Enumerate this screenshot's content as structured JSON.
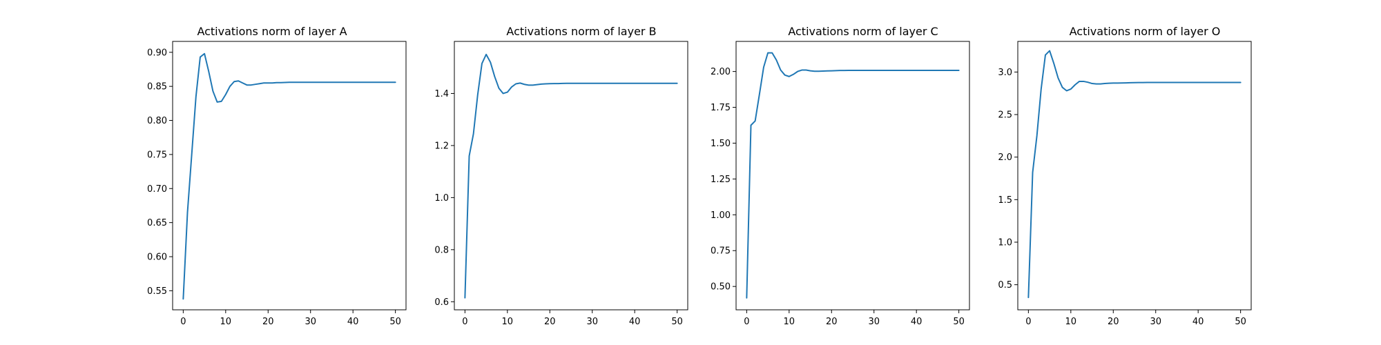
{
  "colors": {
    "series": "#1f77b4",
    "axis": "#000000",
    "background": "#ffffff"
  },
  "chart_data": [
    {
      "type": "line",
      "title": "Activations norm of layer A",
      "xlabel": "",
      "ylabel": "",
      "xlim": [
        -2.5,
        52.5
      ],
      "ylim": [
        0.522,
        0.916
      ],
      "xticks": [
        0,
        10,
        20,
        30,
        40,
        50
      ],
      "yticks": [
        0.55,
        0.6,
        0.65,
        0.7,
        0.75,
        0.8,
        0.85,
        0.9
      ],
      "ytick_labels": [
        "0.55",
        "0.60",
        "0.65",
        "0.70",
        "0.75",
        "0.80",
        "0.85",
        "0.90"
      ],
      "grid": false,
      "series": [
        {
          "x": [
            0,
            1,
            2,
            3,
            4,
            5,
            6,
            7,
            8,
            9,
            10,
            11,
            12,
            13,
            14,
            15,
            16,
            17,
            18,
            19,
            20,
            21,
            22,
            23,
            24,
            25,
            26,
            27,
            28,
            29,
            30,
            31,
            32,
            33,
            34,
            35,
            36,
            37,
            38,
            39,
            40,
            41,
            42,
            43,
            44,
            45,
            46,
            47,
            48,
            49,
            50
          ],
          "values": [
            0.538,
            0.665,
            0.75,
            0.835,
            0.893,
            0.898,
            0.872,
            0.843,
            0.827,
            0.828,
            0.838,
            0.85,
            0.857,
            0.858,
            0.855,
            0.852,
            0.852,
            0.853,
            0.854,
            0.855,
            0.855,
            0.855,
            0.8555,
            0.8555,
            0.8558,
            0.856,
            0.856,
            0.856,
            0.856,
            0.856,
            0.856,
            0.856,
            0.856,
            0.856,
            0.856,
            0.856,
            0.856,
            0.856,
            0.856,
            0.856,
            0.856,
            0.856,
            0.856,
            0.856,
            0.856,
            0.856,
            0.856,
            0.856,
            0.856,
            0.856,
            0.856
          ]
        }
      ]
    },
    {
      "type": "line",
      "title": "Activations norm of layer B",
      "xlabel": "",
      "ylabel": "",
      "xlim": [
        -2.5,
        52.5
      ],
      "ylim": [
        0.569,
        1.6
      ],
      "xticks": [
        0,
        10,
        20,
        30,
        40,
        50
      ],
      "yticks": [
        0.6,
        0.8,
        1.0,
        1.2,
        1.4
      ],
      "ytick_labels": [
        "0.6",
        "0.8",
        "1.0",
        "1.2",
        "1.4"
      ],
      "grid": false,
      "series": [
        {
          "x": [
            0,
            1,
            2,
            3,
            4,
            5,
            6,
            7,
            8,
            9,
            10,
            11,
            12,
            13,
            14,
            15,
            16,
            17,
            18,
            19,
            20,
            21,
            22,
            23,
            24,
            25,
            26,
            27,
            28,
            29,
            30,
            31,
            32,
            33,
            34,
            35,
            36,
            37,
            38,
            39,
            40,
            41,
            42,
            43,
            44,
            45,
            46,
            47,
            48,
            49,
            50
          ],
          "values": [
            0.615,
            1.16,
            1.245,
            1.395,
            1.515,
            1.55,
            1.52,
            1.465,
            1.42,
            1.4,
            1.405,
            1.425,
            1.437,
            1.44,
            1.435,
            1.432,
            1.432,
            1.434,
            1.436,
            1.437,
            1.4375,
            1.438,
            1.438,
            1.4385,
            1.439,
            1.439,
            1.439,
            1.439,
            1.439,
            1.439,
            1.439,
            1.439,
            1.439,
            1.439,
            1.439,
            1.439,
            1.439,
            1.439,
            1.439,
            1.439,
            1.439,
            1.439,
            1.439,
            1.439,
            1.439,
            1.439,
            1.439,
            1.439,
            1.439,
            1.439,
            1.439
          ]
        }
      ]
    },
    {
      "type": "line",
      "title": "Activations norm of layer C",
      "xlabel": "",
      "ylabel": "",
      "xlim": [
        -2.5,
        52.5
      ],
      "ylim": [
        0.337,
        2.21
      ],
      "xticks": [
        0,
        10,
        20,
        30,
        40,
        50
      ],
      "yticks": [
        0.5,
        0.75,
        1.0,
        1.25,
        1.5,
        1.75,
        2.0
      ],
      "ytick_labels": [
        "0.50",
        "0.75",
        "1.00",
        "1.25",
        "1.50",
        "1.75",
        "2.00"
      ],
      "grid": false,
      "series": [
        {
          "x": [
            0,
            1,
            2,
            3,
            4,
            5,
            6,
            7,
            8,
            9,
            10,
            11,
            12,
            13,
            14,
            15,
            16,
            17,
            18,
            19,
            20,
            21,
            22,
            23,
            24,
            25,
            26,
            27,
            28,
            29,
            30,
            31,
            32,
            33,
            34,
            35,
            36,
            37,
            38,
            39,
            40,
            41,
            42,
            43,
            44,
            45,
            46,
            47,
            48,
            49,
            50
          ],
          "values": [
            0.42,
            1.625,
            1.655,
            1.84,
            2.03,
            2.13,
            2.13,
            2.08,
            2.01,
            1.975,
            1.965,
            1.98,
            2.0,
            2.01,
            2.01,
            2.005,
            2.002,
            2.002,
            2.003,
            2.004,
            2.005,
            2.006,
            2.007,
            2.007,
            2.008,
            2.008,
            2.008,
            2.008,
            2.008,
            2.008,
            2.008,
            2.008,
            2.008,
            2.008,
            2.008,
            2.008,
            2.008,
            2.008,
            2.008,
            2.008,
            2.008,
            2.008,
            2.008,
            2.008,
            2.008,
            2.008,
            2.008,
            2.008,
            2.008,
            2.008,
            2.008
          ]
        }
      ]
    },
    {
      "type": "line",
      "title": "Activations norm of layer O",
      "xlabel": "",
      "ylabel": "",
      "xlim": [
        -2.5,
        52.5
      ],
      "ylim": [
        0.205,
        3.36
      ],
      "xticks": [
        0,
        10,
        20,
        30,
        40,
        50
      ],
      "yticks": [
        0.5,
        1.0,
        1.5,
        2.0,
        2.5,
        3.0
      ],
      "ytick_labels": [
        "0.5",
        "1.0",
        "1.5",
        "2.0",
        "2.5",
        "3.0"
      ],
      "grid": false,
      "series": [
        {
          "x": [
            0,
            1,
            2,
            3,
            4,
            5,
            6,
            7,
            8,
            9,
            10,
            11,
            12,
            13,
            14,
            15,
            16,
            17,
            18,
            19,
            20,
            21,
            22,
            23,
            24,
            25,
            26,
            27,
            28,
            29,
            30,
            31,
            32,
            33,
            34,
            35,
            36,
            37,
            38,
            39,
            40,
            41,
            42,
            43,
            44,
            45,
            46,
            47,
            48,
            49,
            50
          ],
          "values": [
            0.35,
            1.82,
            2.25,
            2.8,
            3.2,
            3.25,
            3.1,
            2.93,
            2.82,
            2.78,
            2.8,
            2.85,
            2.89,
            2.89,
            2.88,
            2.865,
            2.86,
            2.86,
            2.865,
            2.868,
            2.87,
            2.87,
            2.871,
            2.872,
            2.874,
            2.875,
            2.876,
            2.876,
            2.877,
            2.877,
            2.877,
            2.877,
            2.877,
            2.877,
            2.877,
            2.877,
            2.877,
            2.877,
            2.877,
            2.877,
            2.877,
            2.877,
            2.877,
            2.877,
            2.877,
            2.877,
            2.877,
            2.877,
            2.877,
            2.877,
            2.877
          ]
        }
      ]
    }
  ]
}
